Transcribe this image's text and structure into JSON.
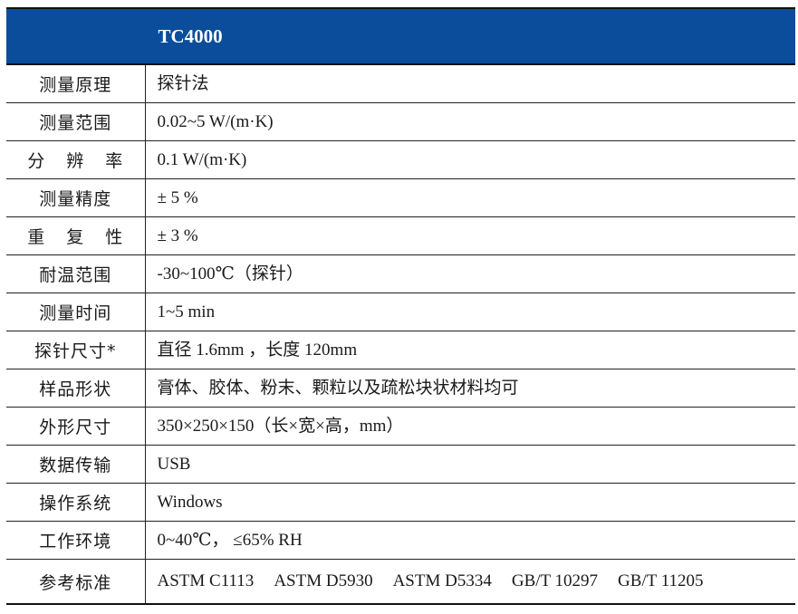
{
  "header": {
    "model": "TC4000"
  },
  "rows": [
    {
      "label": "测量原理",
      "value": "探针法"
    },
    {
      "label": "测量范围",
      "value": "0.02~5 W/(m·K)"
    },
    {
      "label": "分 辨 率",
      "value": "0.1 W/(m·K)"
    },
    {
      "label": "测量精度",
      "value": "± 5 %"
    },
    {
      "label": "重 复 性",
      "value": "± 3 %"
    },
    {
      "label": "耐温范围",
      "value": "-30~100℃（探针）"
    },
    {
      "label": "测量时间",
      "value": "1~5 min"
    },
    {
      "label": "探针尺寸*",
      "value": "直径 1.6mm ，长度 120mm"
    },
    {
      "label": "样品形状",
      "value": "膏体、胶体、粉末、颗粒以及疏松块状材料均可"
    },
    {
      "label": "外形尺寸",
      "value": "350×250×150（长×宽×高，mm）"
    },
    {
      "label": "数据传输",
      "value": "USB"
    },
    {
      "label": "操作系统",
      "value": "Windows"
    },
    {
      "label": "工作环境",
      "value": "0~40℃， ≤65% RH"
    },
    {
      "label": "参考标准",
      "standards": [
        "ASTM C1113",
        "ASTM D5930",
        "ASTM D5334",
        "GB/T 10297",
        "GB/T 11205"
      ]
    }
  ],
  "colors": {
    "header_bg": "#0b4d9b",
    "header_text": "#ffffff"
  }
}
